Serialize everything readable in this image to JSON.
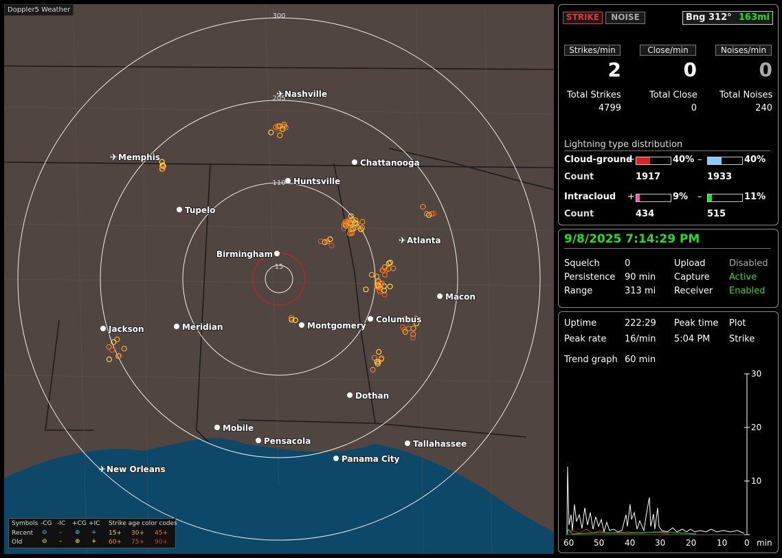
{
  "map": {
    "title": "Doppler5 Weather",
    "ring_labels": [
      "300",
      "205",
      "110",
      "15"
    ],
    "cities": [
      "Nashville",
      "Memphis",
      "Chattanooga",
      "Huntsville",
      "Tupelo",
      "Birmingham",
      "Atlanta",
      "Macon",
      "Jackson",
      "Meridian",
      "Montgomery",
      "Columbus",
      "Dothan",
      "Mobile",
      "Pensacola",
      "Panama City",
      "Tallahassee",
      "New Orleans"
    ],
    "legend": {
      "symbols_label": "Symbols",
      "cols": [
        "-CG",
        "-IC",
        "+CG",
        "+IC"
      ],
      "rows": [
        "Recent",
        "Old"
      ],
      "age_title": "Strike age color codes",
      "age_recent": [
        "15+",
        "30+",
        "45+"
      ],
      "age_old": [
        "60+",
        "75+",
        "90+"
      ]
    }
  },
  "status": {
    "strike_label": "STRIKE",
    "noise_label": "NOISE",
    "bearing": "Bng 312°",
    "range": "163mi",
    "rates": [
      {
        "label": "Strikes/min",
        "value": "2"
      },
      {
        "label": "Close/min",
        "value": "0"
      },
      {
        "label": "Noises/min",
        "value": "0"
      }
    ],
    "totals": [
      {
        "label": "Total Strikes",
        "value": "4799"
      },
      {
        "label": "Total Close",
        "value": "0"
      },
      {
        "label": "Total Noises",
        "value": "240"
      }
    ],
    "distribution_title": "Lightning type distribution",
    "cg_label": "Cloud-ground",
    "ic_label": "Intracloud",
    "count_label": "Count",
    "plus": "+",
    "minus": "–",
    "cg_pos_pct": "40%",
    "cg_neg_pct": "40%",
    "cg_pos_count": "1917",
    "cg_neg_count": "1933",
    "ic_pos_pct": "9%",
    "ic_neg_pct": "11%",
    "ic_pos_count": "434",
    "ic_neg_count": "515",
    "cg_pos_fill": 0.4,
    "cg_neg_fill": 0.4,
    "ic_pos_fill": 0.09,
    "ic_neg_fill": 0.11
  },
  "settings": {
    "datetime": "9/8/2025 7:14:29 PM",
    "rows": [
      {
        "k1": "Squelch",
        "v1": "0",
        "k2": "Upload",
        "v2": "Disabled"
      },
      {
        "k1": "Persistence",
        "v1": "90 min",
        "k2": "Capture",
        "v2": "Active"
      },
      {
        "k1": "Range",
        "v1": "313 mi",
        "k2": "Receiver",
        "v2": "Enabled"
      }
    ]
  },
  "trend": {
    "uptime_label": "Uptime",
    "uptime": "222:29",
    "peak_time_label": "Peak time",
    "plot_label": "Plot",
    "peak_rate_label": "Peak rate",
    "peak_rate": "16/min",
    "peak_time": "5:04 PM",
    "plot": "Strike",
    "trend_label": "Trend graph",
    "trend_span": "60 min",
    "y_ticks": [
      "30",
      "20",
      "10"
    ],
    "x_ticks": [
      "60",
      "50",
      "40",
      "30",
      "20",
      "10",
      "0"
    ],
    "x_unit": "min"
  },
  "colors": {
    "accent_green": "#22dd22",
    "strike_red": "#dd2222",
    "ic_neg_blue": "#88ccff"
  }
}
